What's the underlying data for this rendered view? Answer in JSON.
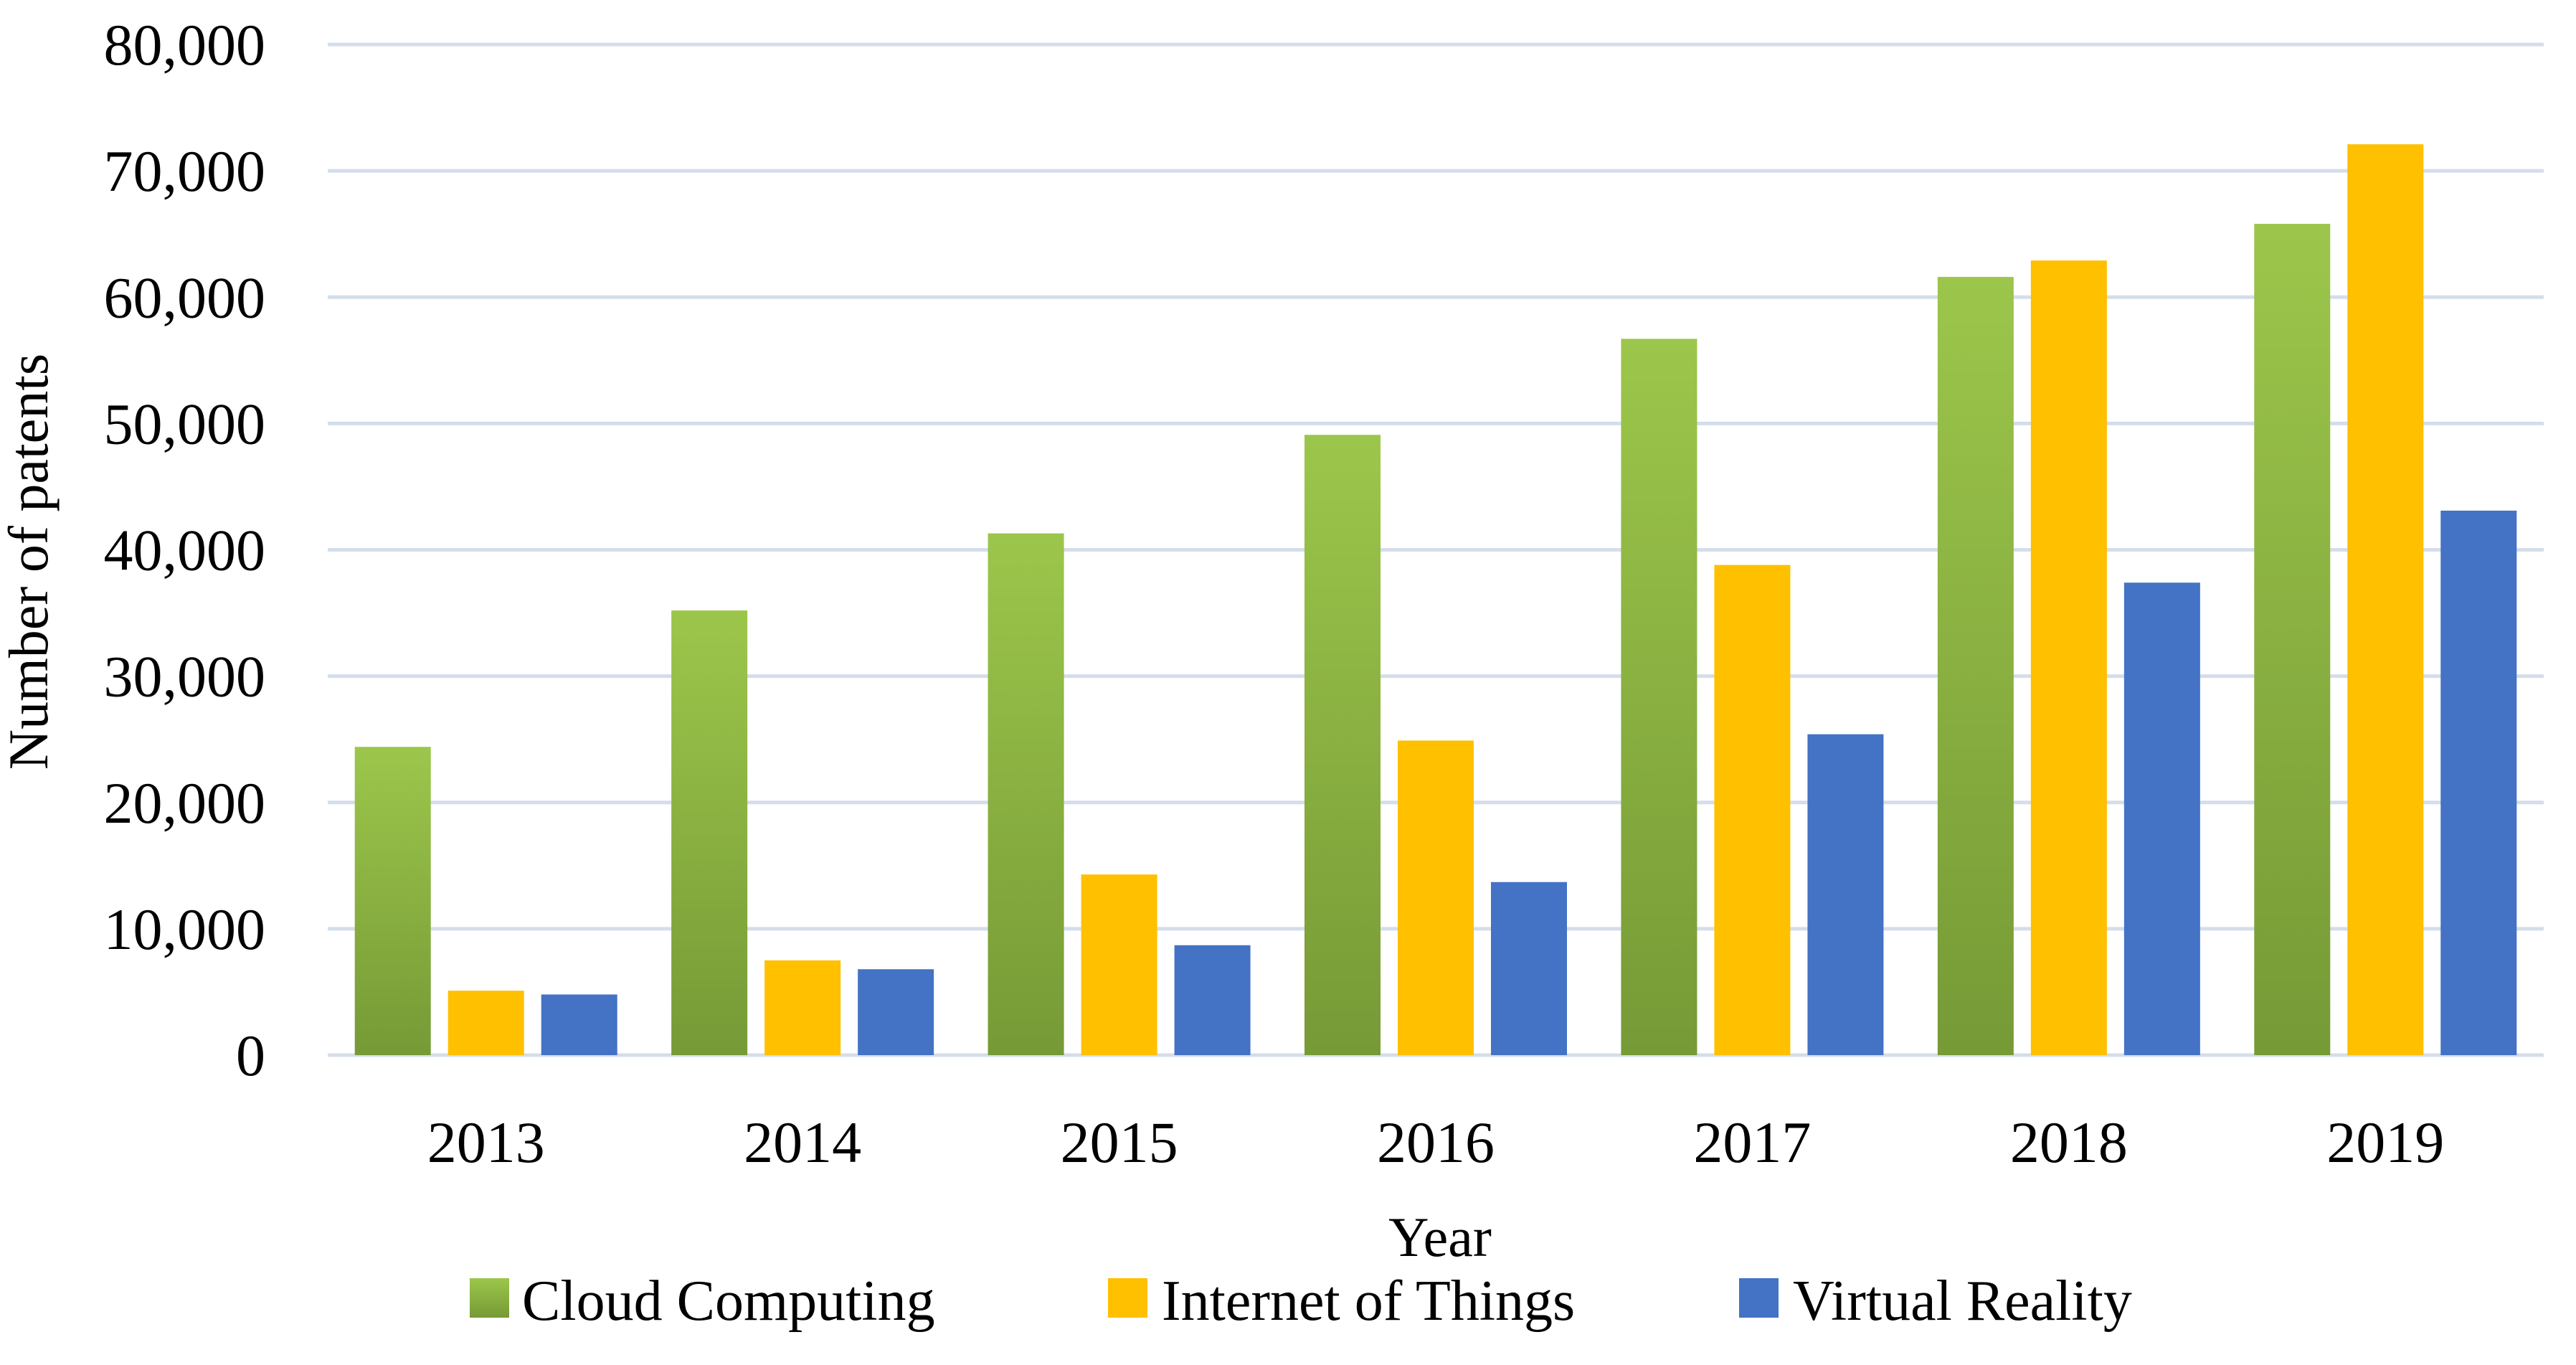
{
  "chart_data": {
    "type": "bar",
    "title": "",
    "xlabel": "Year",
    "ylabel": "Number of patents",
    "categories": [
      "2013",
      "2014",
      "2015",
      "2016",
      "2017",
      "2018",
      "2019"
    ],
    "ylim": [
      0,
      80000
    ],
    "yticks": [
      0,
      10000,
      20000,
      30000,
      40000,
      50000,
      60000,
      70000,
      80000
    ],
    "ytick_labels": [
      "0",
      "10,000",
      "20,000",
      "30,000",
      "40,000",
      "50,000",
      "60,000",
      "70,000",
      "80,000"
    ],
    "grid": true,
    "legend_position": "bottom",
    "series": [
      {
        "name": "Cloud Computing",
        "color": "#8DB33F",
        "values": [
          24400,
          35200,
          41300,
          49100,
          56700,
          61600,
          65800
        ]
      },
      {
        "name": "Internet of Things",
        "color": "#FFC000",
        "values": [
          5100,
          7500,
          14300,
          24900,
          38800,
          62900,
          72100
        ]
      },
      {
        "name": "Virtual Reality",
        "color": "#4472C4",
        "values": [
          4800,
          6800,
          8700,
          13700,
          25400,
          37400,
          43100
        ]
      }
    ]
  }
}
